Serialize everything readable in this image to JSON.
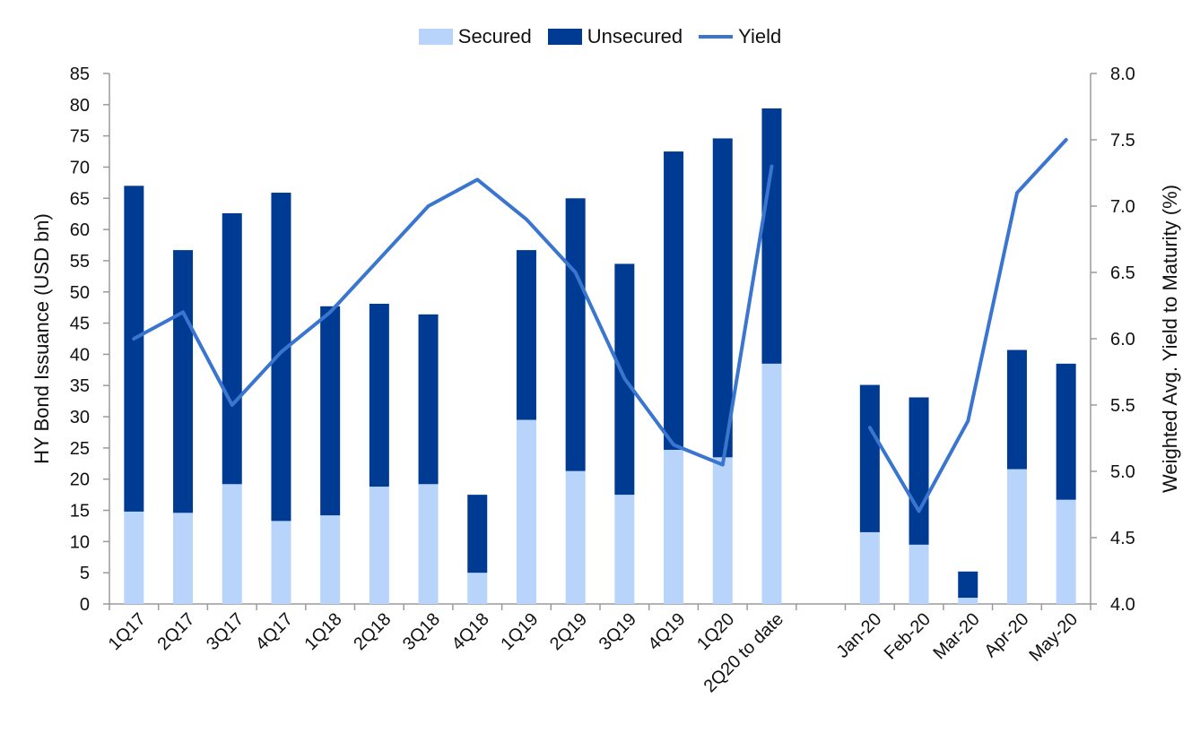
{
  "chart_data": {
    "type": "bar",
    "stacked": true,
    "categories": [
      "1Q17",
      "2Q17",
      "3Q17",
      "4Q17",
      "1Q18",
      "2Q18",
      "3Q18",
      "4Q18",
      "1Q19",
      "2Q19",
      "3Q19",
      "4Q19",
      "1Q20",
      "2Q20 to date",
      "Jan-20",
      "Feb-20",
      "Mar-20",
      "Apr-20",
      "May-20"
    ],
    "category_gap_after": "2Q20 to date",
    "series": [
      {
        "name": "Secured",
        "type": "bar",
        "axis": "left",
        "color": "#b8d4fb",
        "values": [
          14.8,
          14.6,
          19.2,
          13.3,
          14.2,
          18.8,
          19.2,
          5.0,
          29.5,
          21.3,
          17.5,
          24.7,
          23.5,
          38.5,
          11.5,
          9.5,
          1.0,
          21.6,
          16.7
        ]
      },
      {
        "name": "Unsecured",
        "type": "bar",
        "axis": "left",
        "color": "#003b93",
        "values": [
          52.2,
          42.1,
          43.4,
          52.6,
          33.5,
          29.3,
          27.2,
          12.5,
          27.2,
          43.7,
          37.0,
          47.8,
          51.1,
          40.9,
          23.6,
          23.6,
          4.2,
          19.1,
          21.8
        ]
      },
      {
        "name": "Yield",
        "type": "line",
        "axis": "right",
        "color": "#3a75d0",
        "values": [
          6.0,
          6.2,
          5.5,
          5.9,
          6.2,
          6.6,
          7.0,
          7.2,
          6.9,
          6.5,
          5.7,
          5.2,
          5.05,
          7.3,
          5.33,
          4.7,
          5.38,
          7.1,
          7.5
        ]
      }
    ],
    "ylabel": "HY Bond Issuance (USD bn)",
    "y2label": "Weighted Avg. Yield to Maturity (%)",
    "ylim": [
      0,
      85
    ],
    "yticks": [
      "0",
      "5",
      "10",
      "15",
      "20",
      "25",
      "30",
      "35",
      "40",
      "45",
      "50",
      "55",
      "60",
      "65",
      "70",
      "75",
      "80",
      "85"
    ],
    "y2lim": [
      4.0,
      8.0
    ],
    "y2ticks": [
      "4.0",
      "4.5",
      "5.0",
      "5.5",
      "6.0",
      "6.5",
      "7.0",
      "7.5",
      "8.0"
    ],
    "legend_position": "top-center",
    "grid": false
  }
}
